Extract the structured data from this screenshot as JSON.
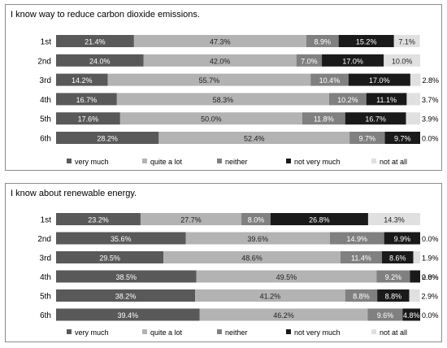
{
  "colors": {
    "very much": "#595959",
    "quite a lot": "#b3b3b3",
    "neither": "#808080",
    "not very much": "#1a1a1a",
    "not at all": "#e0e0e0"
  },
  "chart_data": [
    {
      "type": "bar",
      "orientation": "horizontal",
      "stacked": true,
      "title": "I know way to reduce carbon dioxide emissions.",
      "categories": [
        "1st",
        "2nd",
        "3rd",
        "4th",
        "5th",
        "6th"
      ],
      "series": [
        {
          "name": "very much",
          "values": [
            21.4,
            24.0,
            14.2,
            16.7,
            17.6,
            28.2
          ]
        },
        {
          "name": "quite a lot",
          "values": [
            47.3,
            42.0,
            55.7,
            58.3,
            50.0,
            52.4
          ]
        },
        {
          "name": "neither",
          "values": [
            8.9,
            7.0,
            10.4,
            10.2,
            11.8,
            9.7
          ]
        },
        {
          "name": "not very much",
          "values": [
            15.2,
            17.0,
            17.0,
            11.1,
            16.7,
            9.7
          ]
        },
        {
          "name": "not at all",
          "values": [
            7.1,
            10.0,
            2.8,
            3.7,
            3.9,
            0.0
          ]
        }
      ],
      "labels": [
        [
          "21.4%",
          "47.3%",
          "8.9%",
          "15.2%",
          "7.1%"
        ],
        [
          "24.0%",
          "42.0%",
          "7.0%",
          "17.0%",
          "10.0%"
        ],
        [
          "14.2%",
          "55.7%",
          "10.4%",
          "17.0%",
          "2.8%"
        ],
        [
          "16.7%",
          "58.3%",
          "10.2%",
          "11.1%",
          "3.7%"
        ],
        [
          "17.6%",
          "50.0%",
          "11.8%",
          "16.7%",
          "3.9%"
        ],
        [
          "28.2%",
          "52.4%",
          "9.7%",
          "9.7%",
          "0.0%"
        ]
      ],
      "xlim": [
        0,
        100
      ],
      "legend_position": "bottom"
    },
    {
      "type": "bar",
      "orientation": "horizontal",
      "stacked": true,
      "title": "I know about renewable energy.",
      "categories": [
        "1st",
        "2nd",
        "3rd",
        "4th",
        "5th",
        "6th"
      ],
      "series": [
        {
          "name": "very much",
          "values": [
            23.2,
            35.6,
            29.5,
            38.5,
            38.2,
            39.4
          ]
        },
        {
          "name": "quite a lot",
          "values": [
            27.7,
            39.6,
            48.6,
            49.5,
            41.2,
            46.2
          ]
        },
        {
          "name": "neither",
          "values": [
            8.0,
            14.9,
            11.4,
            9.2,
            8.8,
            9.6
          ]
        },
        {
          "name": "not very much",
          "values": [
            26.8,
            9.9,
            8.6,
            2.8,
            8.8,
            4.8
          ]
        },
        {
          "name": "not at all",
          "values": [
            14.3,
            0.0,
            1.9,
            0.0,
            2.9,
            0.0
          ]
        }
      ],
      "labels": [
        [
          "23.2%",
          "27.7%",
          "8.0%",
          "26.8%",
          "14.3%"
        ],
        [
          "35.6%",
          "39.6%",
          "14.9%",
          "9.9%",
          "0.0%"
        ],
        [
          "29.5%",
          "48.6%",
          "11.4%",
          "8.6%",
          "1.9%"
        ],
        [
          "38.5%",
          "49.5%",
          "9.2%",
          "2.8%",
          "0.0%"
        ],
        [
          "38.2%",
          "41.2%",
          "8.8%",
          "8.8%",
          "2.9%"
        ],
        [
          "39.4%",
          "46.2%",
          "9.6%",
          "4.8%",
          "0.0%"
        ]
      ],
      "xlim": [
        0,
        100
      ],
      "legend_position": "bottom"
    }
  ]
}
